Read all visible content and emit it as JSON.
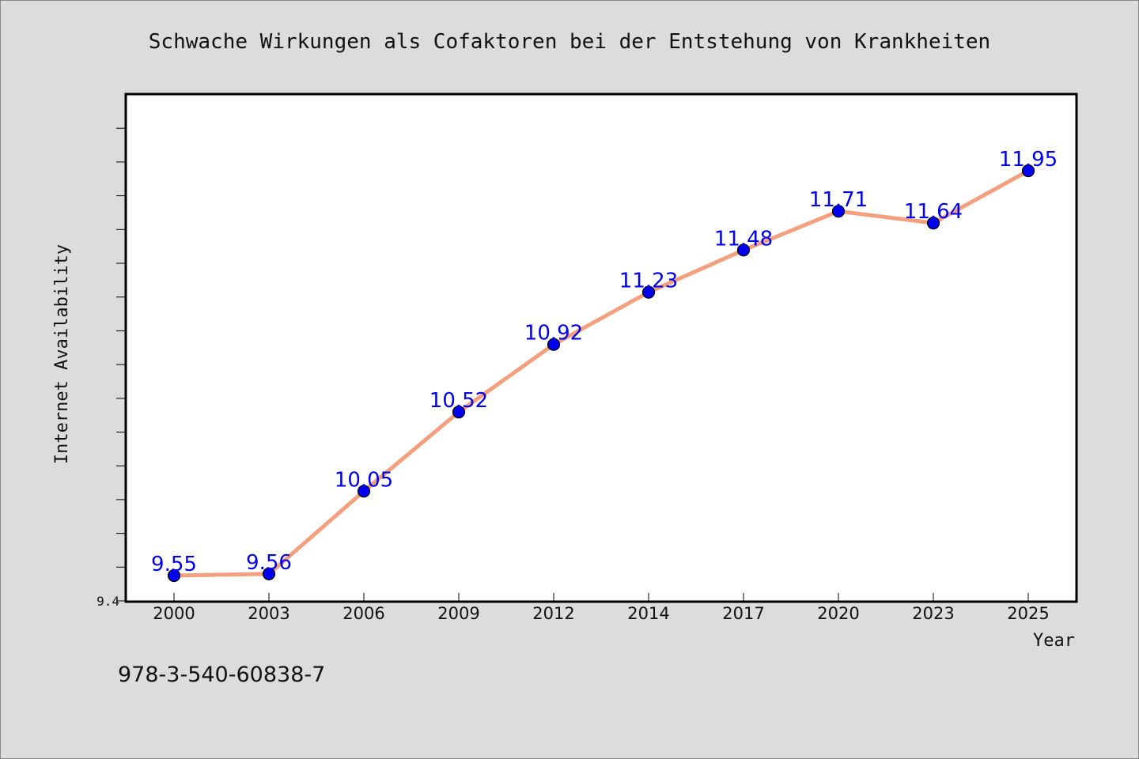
{
  "chart_data": {
    "type": "line",
    "title": "Schwache Wirkungen als Cofaktoren bei der Entstehung von Krankheiten",
    "xlabel": "Year",
    "ylabel": "Internet Availability",
    "categories": [
      "2000",
      "2003",
      "2006",
      "2009",
      "2012",
      "2014",
      "2017",
      "2020",
      "2023",
      "2025"
    ],
    "series": [
      {
        "values": [
          9.55,
          9.56,
          10.05,
          10.52,
          10.92,
          11.23,
          11.48,
          11.71,
          11.64,
          11.95
        ],
        "labels": [
          "9.55",
          "9.56",
          "10.05",
          "10.52",
          "10.92",
          "11.23",
          "11.48",
          "11.71",
          "11.64",
          "11.95"
        ]
      }
    ],
    "ylim": [
      9.4,
      12.4
    ],
    "ytick_labels": [
      "9.4"
    ],
    "grid": false,
    "legend": "none",
    "colors": {
      "line": "#f4a07e",
      "marker": "#0000ee",
      "data_label": "#0000ee",
      "plot_background": "#ffffff",
      "figure_background": "#dcdcdc"
    }
  },
  "footer": {
    "isbn": "978-3-540-60838-7"
  }
}
